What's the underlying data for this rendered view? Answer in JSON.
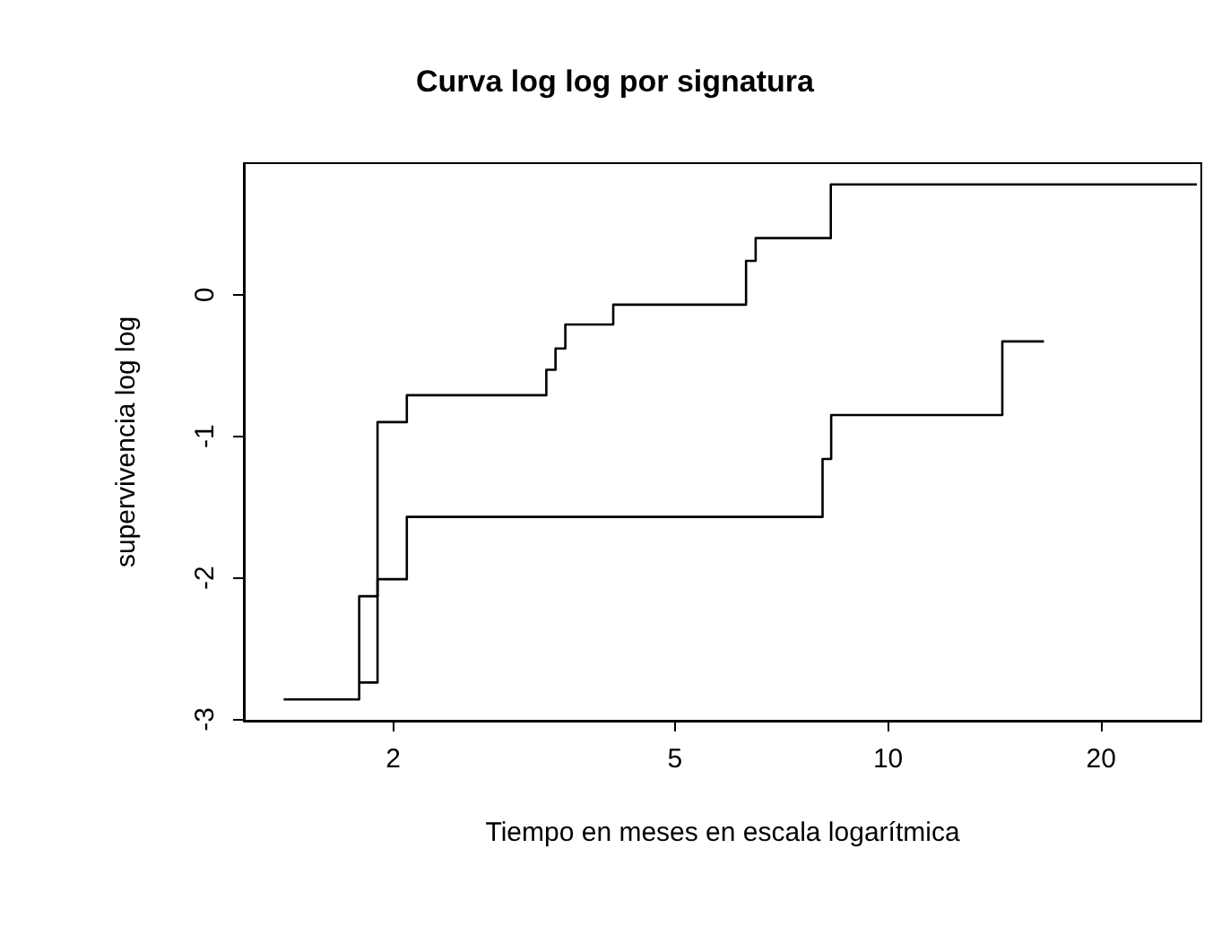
{
  "chart_data": {
    "type": "step",
    "title": "Curva log log por signatura",
    "xlabel": "Tiempo en meses en escala logarítmica",
    "ylabel": "supervivencia log log",
    "log": "x",
    "xlim": [
      1.23,
      27.7
    ],
    "xticks": [
      2,
      5,
      10,
      20
    ],
    "ylim": [
      -3.01,
      0.93
    ],
    "yticks": [
      -3,
      -2,
      -1,
      0
    ],
    "grid": false,
    "marker": "none",
    "line_style": "solid",
    "series": [
      {
        "color": "#000000",
        "x": [
          1.4,
          1.79,
          1.9,
          2.09,
          3.29,
          3.39,
          3.5,
          4.09,
          6.3,
          6.5,
          8.3,
          27.3
        ],
        "values": [
          -2.86,
          -2.13,
          -0.9,
          -0.71,
          -0.53,
          -0.38,
          -0.21,
          -0.07,
          0.24,
          0.4,
          0.78,
          0.78
        ]
      },
      {
        "color": "#000000",
        "x": [
          1.79,
          1.9,
          2.09,
          8.08,
          8.31,
          14.5,
          16.6
        ],
        "values": [
          -2.74,
          -2.01,
          -1.57,
          -1.16,
          -0.85,
          -0.33,
          -0.33
        ]
      }
    ]
  }
}
